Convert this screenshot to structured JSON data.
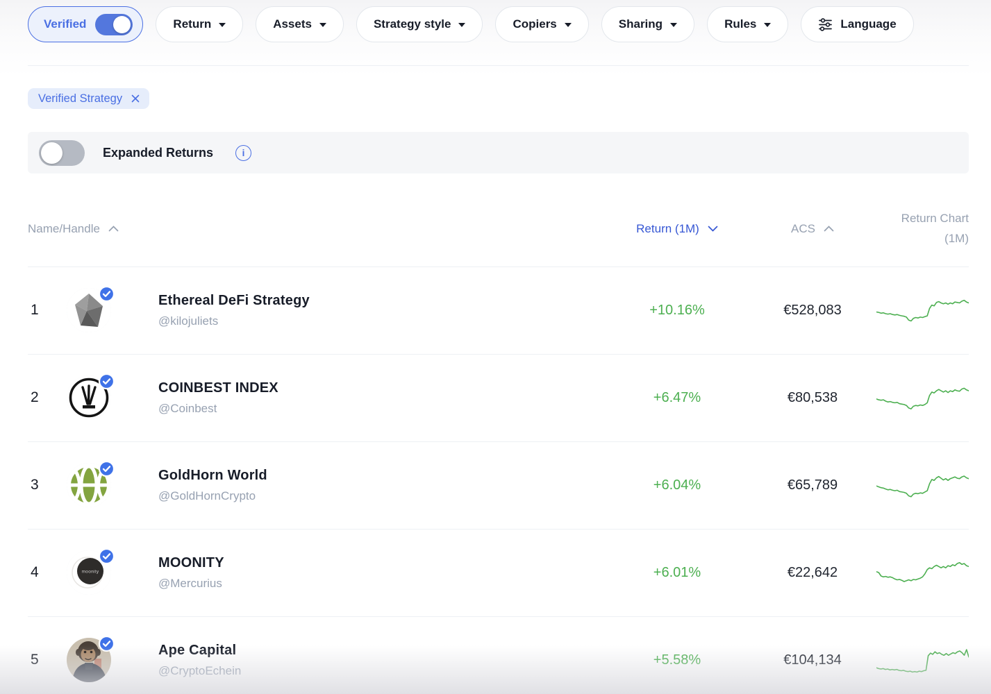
{
  "colors": {
    "accent": "#4a6fe3",
    "accent_header": "#3657d4",
    "green": "#4caf50",
    "muted": "#97a1b1",
    "dark": "#171c28"
  },
  "filters": {
    "verified_toggle": {
      "label": "Verified",
      "state": "on"
    },
    "dropdowns": [
      {
        "label": "Return"
      },
      {
        "label": "Assets"
      },
      {
        "label": "Strategy style"
      },
      {
        "label": "Copiers"
      },
      {
        "label": "Sharing"
      },
      {
        "label": "Rules"
      }
    ],
    "language": {
      "label": "Language"
    }
  },
  "active_filters": [
    {
      "label": "Verified Strategy"
    }
  ],
  "expanded_returns": {
    "label": "Expanded Returns",
    "state": "off",
    "info_glyph": "i"
  },
  "table": {
    "headers": {
      "name": "Name/Handle",
      "return": "Return (1M)",
      "acs": "ACS",
      "chart_line1": "Return Chart",
      "chart_line2": "(1M)",
      "sort_active": "return",
      "sort_direction": "desc"
    },
    "rows": [
      {
        "rank": "1",
        "name": "Ethereal DeFi Strategy",
        "handle": "@kilojuliets",
        "return": "+10.16%",
        "acs": "€528,083",
        "verified": true,
        "avatar": "gray-gem"
      },
      {
        "rank": "2",
        "name": "COINBEST INDEX",
        "handle": "@Coinbest",
        "return": "+6.47%",
        "acs": "€80,538",
        "verified": true,
        "avatar": "coinbest-w-mark"
      },
      {
        "rank": "3",
        "name": "GoldHorn World",
        "handle": "@GoldHornCrypto",
        "return": "+6.04%",
        "acs": "€65,789",
        "verified": true,
        "avatar": "green-globe"
      },
      {
        "rank": "4",
        "name": "MOONITY",
        "handle": "@Mercurius",
        "return": "+6.01%",
        "acs": "€22,642",
        "verified": true,
        "avatar": "moonity-disc",
        "avatar_text": "moonity"
      },
      {
        "rank": "5",
        "name": "Ape Capital",
        "handle": "@CryptoEchein",
        "return": "+5.58%",
        "acs": "€104,134",
        "verified": true,
        "avatar": "chimp-photo"
      }
    ]
  },
  "chart_data": [
    {
      "type": "line",
      "name": "Ethereal DeFi Strategy 1M return sparkline",
      "color": "#4caf50",
      "values": [
        46,
        45,
        43,
        44,
        42,
        41,
        42,
        40,
        39,
        40,
        38,
        37,
        36,
        34,
        27,
        25,
        31,
        33,
        32,
        34,
        33,
        35,
        37,
        54,
        62,
        60,
        68,
        70,
        67,
        65,
        67,
        64,
        67,
        65,
        69,
        68,
        67,
        71,
        73,
        69,
        67
      ]
    },
    {
      "type": "line",
      "name": "COINBEST INDEX 1M return sparkline",
      "color": "#4caf50",
      "values": [
        47,
        45,
        44,
        45,
        42,
        40,
        41,
        39,
        38,
        39,
        36,
        35,
        34,
        32,
        26,
        24,
        30,
        32,
        31,
        33,
        32,
        34,
        38,
        55,
        63,
        61,
        66,
        69,
        66,
        63,
        66,
        62,
        66,
        64,
        68,
        66,
        65,
        70,
        72,
        68,
        66
      ]
    },
    {
      "type": "line",
      "name": "GoldHorn World 1M return sparkline",
      "color": "#4caf50",
      "values": [
        48,
        46,
        44,
        43,
        41,
        39,
        40,
        38,
        37,
        38,
        35,
        34,
        33,
        31,
        25,
        23,
        29,
        31,
        30,
        32,
        31,
        34,
        37,
        53,
        63,
        61,
        67,
        70,
        66,
        62,
        65,
        61,
        65,
        67,
        69,
        66,
        65,
        69,
        71,
        67,
        65
      ]
    },
    {
      "type": "line",
      "name": "MOONITY 1M return sparkline",
      "color": "#4caf50",
      "values": [
        52,
        50,
        42,
        40,
        41,
        39,
        40,
        38,
        35,
        33,
        34,
        32,
        29,
        31,
        33,
        31,
        34,
        33,
        35,
        37,
        40,
        47,
        57,
        61,
        59,
        64,
        67,
        64,
        61,
        64,
        61,
        66,
        64,
        68,
        66,
        71,
        73,
        69,
        71,
        66,
        64
      ]
    },
    {
      "type": "line",
      "name": "Ape Capital 1M return sparkline",
      "color": "#4caf50",
      "values": [
        32,
        30,
        29,
        30,
        28,
        29,
        27,
        28,
        27,
        28,
        26,
        25,
        26,
        24,
        23,
        24,
        22,
        23,
        22,
        24,
        23,
        25,
        26,
        60,
        66,
        63,
        69,
        65,
        67,
        63,
        61,
        65,
        61,
        64,
        67,
        65,
        69,
        71,
        67,
        61,
        74,
        57
      ]
    }
  ]
}
